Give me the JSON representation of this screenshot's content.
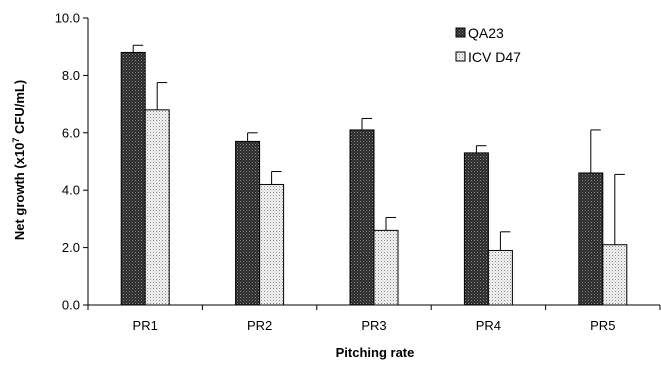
{
  "chart_data": {
    "type": "bar",
    "xlabel": "Pitching rate",
    "ylabel": {
      "prefix": "Net growth (x10",
      "exponent": "7",
      "suffix": " CFU/mL)"
    },
    "ylim": [
      0,
      10
    ],
    "yticks": [
      "0.0",
      "2.0",
      "4.0",
      "6.0",
      "8.0",
      "10.0"
    ],
    "categories": [
      "PR1",
      "PR2",
      "PR3",
      "PR4",
      "PR5"
    ],
    "series": [
      {
        "name": "QA23",
        "values": [
          8.8,
          5.7,
          6.1,
          5.3,
          4.6
        ],
        "errors": [
          0.25,
          0.3,
          0.4,
          0.25,
          1.5
        ],
        "pattern": "dense-dark"
      },
      {
        "name": "ICV D47",
        "values": [
          6.8,
          4.2,
          2.6,
          1.9,
          2.1
        ],
        "errors": [
          0.95,
          0.45,
          0.45,
          0.65,
          2.45
        ],
        "pattern": "light-dotted"
      }
    ],
    "legend_position": "top-right",
    "grid": false
  }
}
